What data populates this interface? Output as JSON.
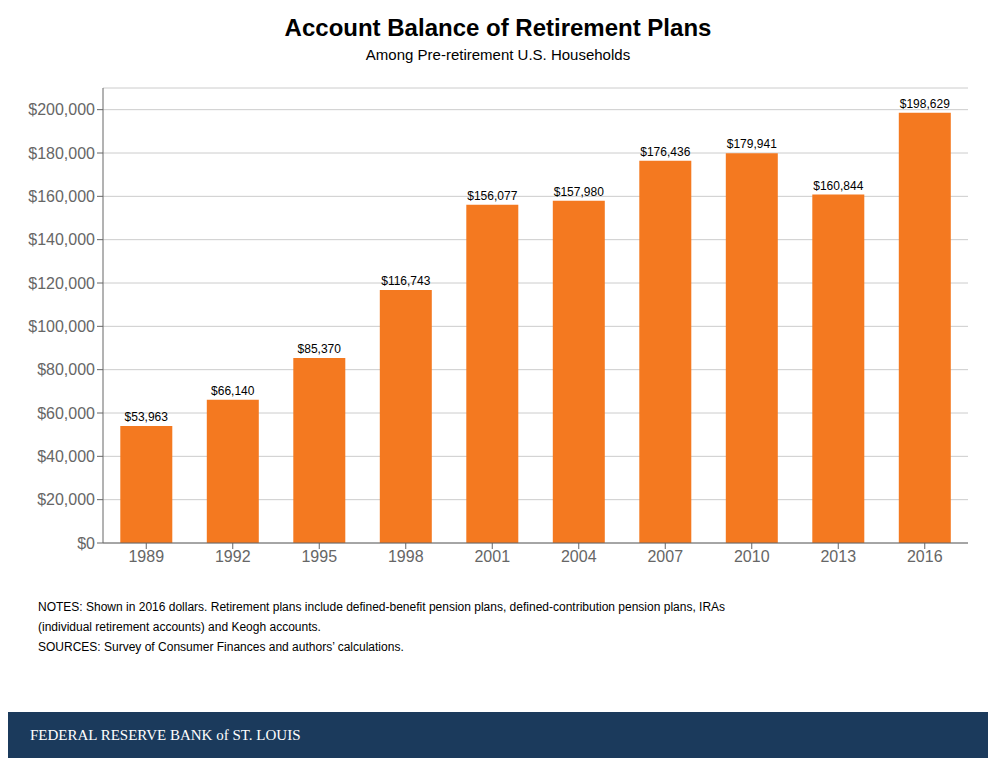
{
  "chart_data": {
    "type": "bar",
    "title": "Account Balance of Retirement Plans",
    "subtitle": "Among Pre-retirement U.S. Households",
    "categories": [
      1989,
      1992,
      1995,
      1998,
      2001,
      2004,
      2007,
      2010,
      2013,
      2016
    ],
    "values": [
      53963,
      66140,
      85370,
      116743,
      156077,
      157980,
      176436,
      179941,
      160844,
      198629
    ],
    "value_labels": [
      "$53,963",
      "$66,140",
      "$85,370",
      "$116,743",
      "$156,077",
      "$157,980",
      "$176,436",
      "$179,941",
      "$160,844",
      "$198,629"
    ],
    "data_labels": true,
    "color": "#F47920",
    "ylim": [
      0,
      210000
    ],
    "yticks": [
      {
        "value": 0,
        "label": "$0"
      },
      {
        "value": 20000,
        "label": "$20,000"
      },
      {
        "value": 40000,
        "label": "$40,000"
      },
      {
        "value": 60000,
        "label": "$60,000"
      },
      {
        "value": 80000,
        "label": "$80,000"
      },
      {
        "value": 100000,
        "label": "$100,000"
      },
      {
        "value": 120000,
        "label": "$120,000"
      },
      {
        "value": 140000,
        "label": "$140,000"
      },
      {
        "value": 160000,
        "label": "$160,000"
      },
      {
        "value": 180000,
        "label": "$180,000"
      },
      {
        "value": 200000,
        "label": "$200,000"
      }
    ],
    "grid": true,
    "notes": [
      "NOTES: Shown in 2016 dollars. Retirement plans include defined-benefit pension plans, defined-contribution pension plans, IRAs",
      "(individual retirement accounts) and Keogh accounts."
    ],
    "sources": "SOURCES: Survey of Consumer Finances and authors’ calculations.",
    "footer": "FEDERAL RESERVE BANK of ST. LOUIS"
  }
}
